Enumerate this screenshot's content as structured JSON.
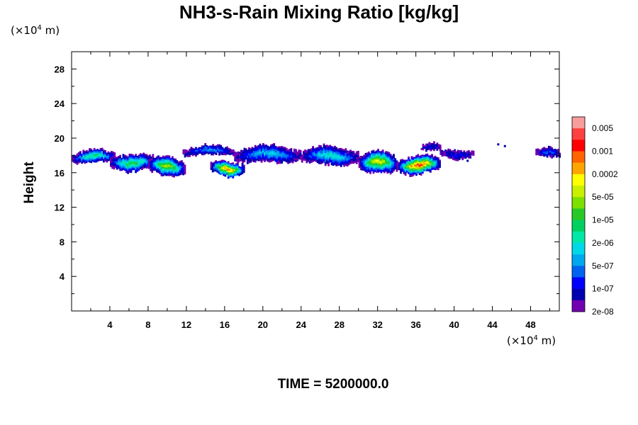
{
  "chart_data": {
    "type": "heatmap",
    "title": "NH3-s-Rain Mixing Ratio [kg/kg]",
    "ylabel": "Height",
    "xlabel": "",
    "y_unit": "(×10",
    "y_unit_exp": "4",
    "y_unit_tail": " m)",
    "x_unit": "(×10",
    "x_unit_exp": "4",
    "x_unit_tail": " m)",
    "xlim": [
      0,
      51
    ],
    "ylim": [
      0,
      30
    ],
    "x_ticks": [
      4,
      8,
      12,
      16,
      20,
      24,
      28,
      32,
      36,
      40,
      44,
      48
    ],
    "y_ticks": [
      4,
      8,
      12,
      16,
      20,
      24,
      28
    ],
    "colorbar": {
      "labels": [
        "0.005",
        "0.001",
        "0.0002",
        "5e-05",
        "1e-05",
        "2e-06",
        "5e-07",
        "1e-07",
        "2e-08"
      ],
      "colors": [
        "#f89c9c",
        "#ff4040",
        "#ff0000",
        "#ff6400",
        "#ffa500",
        "#ffff00",
        "#c8f000",
        "#7ce000",
        "#28c828",
        "#00d060",
        "#00e8a8",
        "#00d8e8",
        "#00a8f0",
        "#0064f0",
        "#0000ff",
        "#0000b0",
        "#7000b0"
      ]
    },
    "regions": [
      {
        "x_start": 0,
        "x_end": 4.5,
        "y_center": 17.9,
        "thickness": 1.4,
        "peak_level": 9
      },
      {
        "x_start": 4,
        "x_end": 8.5,
        "y_center": 17.3,
        "thickness": 1.8,
        "peak_level": 8
      },
      {
        "x_start": 8,
        "x_end": 11.8,
        "y_center": 16.8,
        "thickness": 2.0,
        "peak_level": 6
      },
      {
        "x_start": 14.5,
        "x_end": 18,
        "y_center": 16.6,
        "thickness": 1.6,
        "peak_level": 3
      },
      {
        "x_start": 11.6,
        "x_end": 17,
        "y_center": 18.6,
        "thickness": 1.0,
        "peak_level": 12
      },
      {
        "x_start": 17,
        "x_end": 24,
        "y_center": 18.2,
        "thickness": 1.8,
        "peak_level": 11
      },
      {
        "x_start": 24,
        "x_end": 30,
        "y_center": 18.0,
        "thickness": 1.9,
        "peak_level": 10
      },
      {
        "x_start": 30,
        "x_end": 34,
        "y_center": 17.2,
        "thickness": 2.4,
        "peak_level": 5
      },
      {
        "x_start": 34,
        "x_end": 38.5,
        "y_center": 17.0,
        "thickness": 2.0,
        "peak_level": 2
      },
      {
        "x_start": 36.5,
        "x_end": 38.5,
        "y_center": 18.9,
        "thickness": 0.8,
        "peak_level": 14
      },
      {
        "x_start": 38.5,
        "x_end": 42,
        "y_center": 18.3,
        "thickness": 0.9,
        "peak_level": 14
      },
      {
        "x_start": 48.5,
        "x_end": 51,
        "y_center": 18.3,
        "thickness": 1.0,
        "peak_level": 13
      }
    ]
  },
  "time_label": "TIME = 5200000.0"
}
